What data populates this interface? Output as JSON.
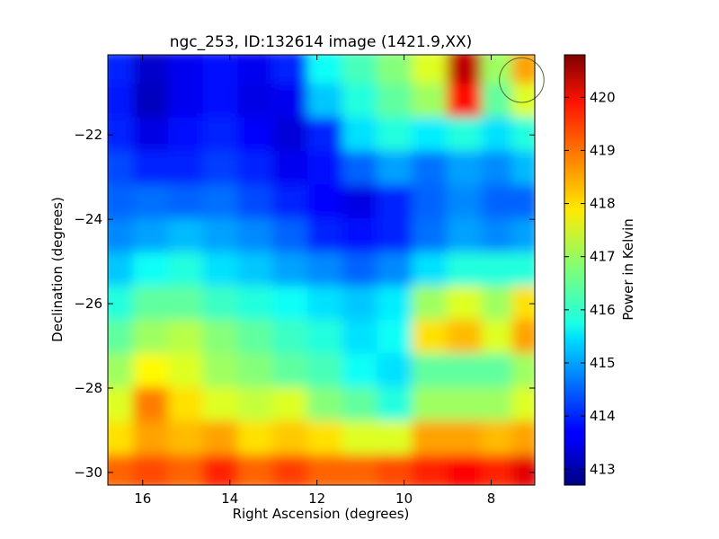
{
  "chart_data": {
    "type": "heatmap",
    "title": "ngc_253, ID:132614 image (1421.9,XX)",
    "xlabel": "Right Ascension (degrees)",
    "ylabel": "Declination (degrees)",
    "colorbar_label": "Power in Kelvin",
    "colormap": "jet",
    "xlim": [
      16.8,
      7.0
    ],
    "ylim": [
      -30.3,
      -20.1
    ],
    "x_ticks": [
      16,
      14,
      12,
      10,
      8
    ],
    "x_tick_labels": [
      "16",
      "14",
      "12",
      "10",
      "8"
    ],
    "y_ticks": [
      -22,
      -24,
      -26,
      -28,
      -30
    ],
    "y_tick_labels": [
      "−22",
      "−24",
      "−26",
      "−28",
      "−30"
    ],
    "color_range": [
      412.7,
      420.8
    ],
    "colorbar_ticks": [
      413,
      414,
      415,
      416,
      417,
      418,
      419,
      420
    ],
    "colorbar_tick_labels": [
      "413",
      "414",
      "415",
      "416",
      "417",
      "418",
      "419",
      "420"
    ],
    "x_centers": [
      16.6,
      15.8,
      15.0,
      14.2,
      13.4,
      12.6,
      11.8,
      11.0,
      10.2,
      9.4,
      8.6,
      7.8,
      7.2
    ],
    "y_centers": [
      -20.4,
      -21.2,
      -22.0,
      -22.8,
      -23.6,
      -24.4,
      -25.2,
      -26.0,
      -26.8,
      -27.6,
      -28.4,
      -29.2,
      -30.0
    ],
    "values": [
      [
        414.0,
        413.3,
        413.6,
        413.8,
        413.6,
        414.0,
        415.8,
        416.3,
        416.8,
        417.5,
        420.3,
        417.0,
        418.5
      ],
      [
        413.9,
        413.2,
        413.6,
        413.8,
        413.5,
        413.6,
        415.3,
        416.0,
        416.5,
        417.0,
        419.7,
        416.5,
        417.5
      ],
      [
        414.0,
        413.5,
        413.8,
        414.0,
        413.7,
        413.4,
        414.0,
        415.5,
        416.0,
        415.6,
        416.0,
        415.5,
        416.0
      ],
      [
        414.3,
        414.0,
        414.0,
        414.2,
        414.0,
        413.6,
        413.8,
        414.5,
        415.0,
        414.6,
        415.0,
        414.8,
        415.2
      ],
      [
        414.5,
        414.6,
        414.5,
        414.6,
        414.3,
        414.0,
        413.7,
        413.5,
        414.0,
        414.5,
        414.8,
        414.5,
        414.5
      ],
      [
        414.8,
        415.0,
        415.2,
        415.0,
        414.8,
        414.5,
        414.0,
        413.8,
        414.0,
        414.6,
        415.0,
        414.8,
        415.0
      ],
      [
        415.3,
        415.8,
        416.0,
        415.5,
        415.3,
        415.0,
        414.8,
        414.5,
        414.8,
        415.5,
        416.0,
        416.0,
        416.0
      ],
      [
        416.0,
        416.5,
        416.5,
        416.2,
        416.0,
        415.8,
        415.5,
        415.3,
        415.6,
        417.0,
        417.5,
        417.0,
        418.0
      ],
      [
        416.5,
        417.0,
        417.2,
        416.8,
        416.5,
        416.2,
        416.0,
        415.5,
        415.8,
        418.0,
        418.3,
        417.5,
        418.5
      ],
      [
        417.0,
        417.8,
        417.5,
        417.0,
        416.8,
        416.5,
        416.3,
        415.8,
        415.5,
        416.5,
        416.5,
        416.5,
        417.0
      ],
      [
        417.5,
        418.8,
        418.0,
        417.5,
        417.3,
        417.5,
        416.8,
        416.5,
        416.0,
        417.0,
        417.0,
        417.0,
        417.5
      ],
      [
        418.0,
        418.5,
        418.3,
        418.5,
        418.0,
        418.2,
        418.0,
        417.5,
        417.5,
        418.5,
        418.5,
        418.3,
        418.5
      ],
      [
        419.0,
        419.2,
        419.0,
        419.5,
        419.0,
        419.3,
        419.0,
        419.0,
        419.2,
        419.5,
        419.8,
        419.5,
        420.0
      ]
    ],
    "marker": {
      "shape": "circle",
      "ra": 7.3,
      "dec": -20.7,
      "radius_deg": 0.32
    }
  }
}
